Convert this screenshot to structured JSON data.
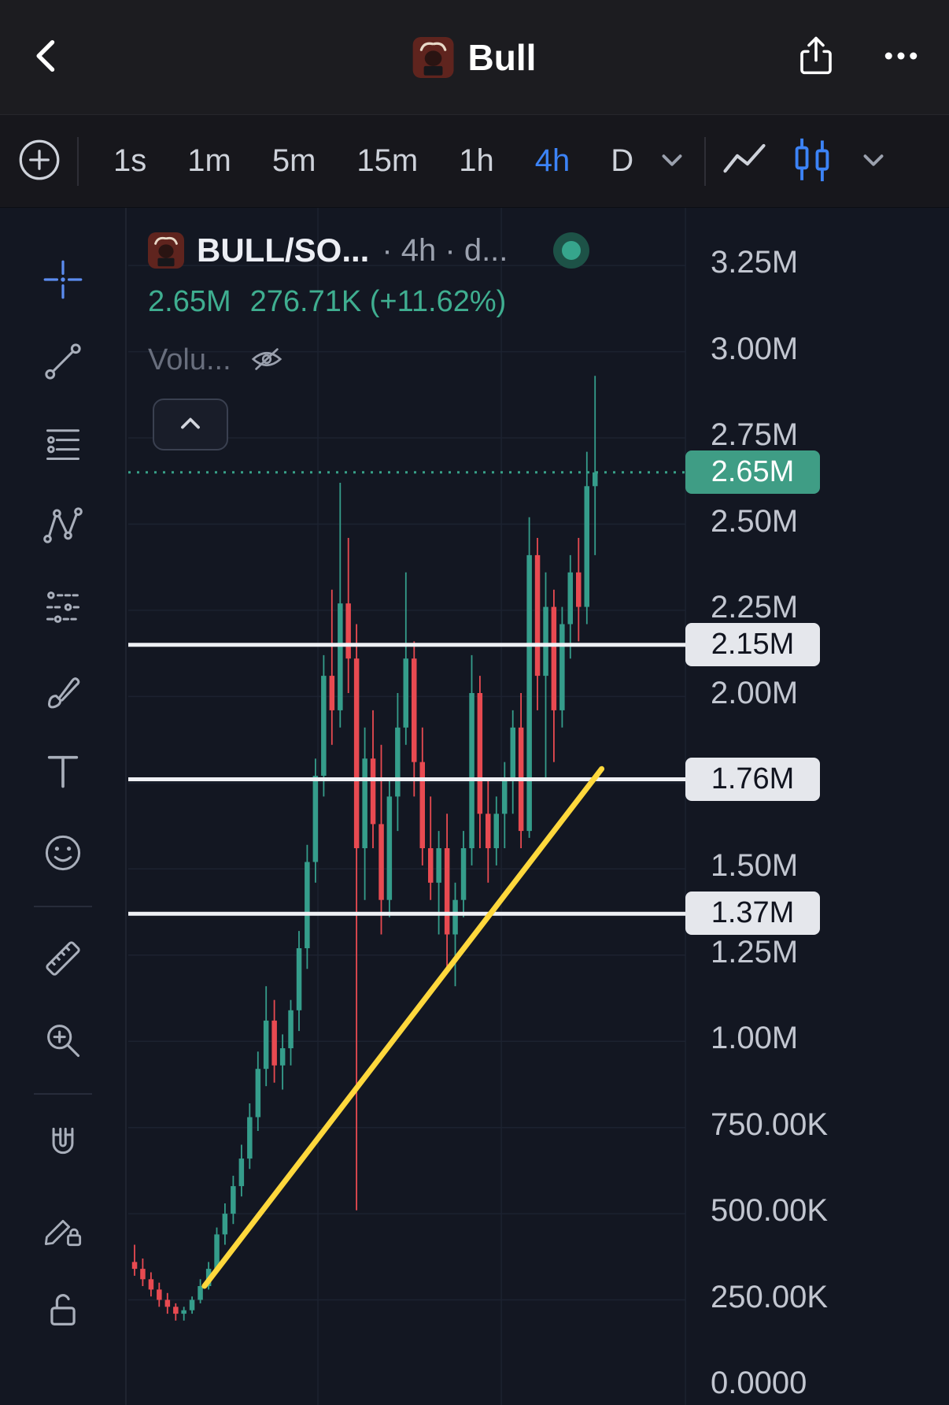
{
  "header": {
    "title": "Bull",
    "icons": [
      "back-icon",
      "bull-avatar",
      "share-icon",
      "more-icon"
    ]
  },
  "toolbar": {
    "add_icon": "add-circle-icon",
    "timeframes": [
      {
        "label": "1s",
        "active": false
      },
      {
        "label": "1m",
        "active": false
      },
      {
        "label": "5m",
        "active": false
      },
      {
        "label": "15m",
        "active": false
      },
      {
        "label": "1h",
        "active": false
      },
      {
        "label": "4h",
        "active": true
      },
      {
        "label": "D",
        "active": false
      }
    ],
    "chart_style_icons": [
      "line-chart-icon",
      "candlestick-icon",
      "chevron-down-icon"
    ]
  },
  "sidebar_tools": [
    "crosshair",
    "trend-line",
    "horizontal-lines",
    "xabcd-pattern",
    "indicator-dots",
    "brush",
    "text",
    "emoji",
    "ruler",
    "zoom-in",
    "magnet",
    "draw-lock",
    "lock-open"
  ],
  "legend": {
    "symbol": "BULL/SO...",
    "interval": "· 4h · d...",
    "price": "2.65M",
    "change": "276.71K (+11.62%)",
    "volume_label": "Volu...",
    "volume_hidden_icon": "eye-off-icon",
    "status_icon": "market-status-dot"
  },
  "price_axis": {
    "labels": [
      {
        "text": "3.25M",
        "value": 3.25
      },
      {
        "text": "3.00M",
        "value": 3.0
      },
      {
        "text": "2.75M",
        "value": 2.75
      },
      {
        "text": "2.50M",
        "value": 2.5
      },
      {
        "text": "2.25M",
        "value": 2.25
      },
      {
        "text": "2.00M",
        "value": 2.0
      },
      {
        "text": "1.50M",
        "value": 1.5
      },
      {
        "text": "1.25M",
        "value": 1.25
      },
      {
        "text": "1.00M",
        "value": 1.0
      },
      {
        "text": "750.00K",
        "value": 0.75
      },
      {
        "text": "500.00K",
        "value": 0.5
      },
      {
        "text": "250.00K",
        "value": 0.25
      },
      {
        "text": "0.0000",
        "value": 0.0
      }
    ],
    "badges": [
      {
        "text": "2.65M",
        "value": 2.65,
        "kind": "current"
      },
      {
        "text": "2.15M",
        "value": 2.15,
        "kind": "level"
      },
      {
        "text": "1.76M",
        "value": 1.76,
        "kind": "level"
      },
      {
        "text": "1.37M",
        "value": 1.37,
        "kind": "level"
      }
    ]
  },
  "colors": {
    "up": "#359d8b",
    "down": "#e84a51",
    "accent_blue": "#3c83f6",
    "trendline_yellow": "#ffd83c",
    "current_line": "#37a188",
    "level_line": "#eef0f4"
  },
  "chart_data": {
    "type": "candlestick",
    "symbol": "BULL/SO...",
    "interval": "4h",
    "last_price": 2.65,
    "change_abs": "276.71K",
    "change_pct": 11.62,
    "ylim": [
      0,
      3.4
    ],
    "levels": [
      2.15,
      1.76,
      1.37
    ],
    "current_price": 2.65,
    "trendline": {
      "x1_index": 8.5,
      "v1": 0.29,
      "x2_index": 56.8,
      "v2": 1.79
    },
    "v_grid_indices": [
      22.3,
      44.6,
      67
    ],
    "candles": [
      [
        0.36,
        0.41,
        0.32,
        0.34
      ],
      [
        0.34,
        0.37,
        0.29,
        0.31
      ],
      [
        0.31,
        0.33,
        0.26,
        0.28
      ],
      [
        0.28,
        0.3,
        0.23,
        0.25
      ],
      [
        0.25,
        0.27,
        0.21,
        0.23
      ],
      [
        0.23,
        0.24,
        0.19,
        0.21
      ],
      [
        0.21,
        0.23,
        0.19,
        0.22
      ],
      [
        0.22,
        0.26,
        0.21,
        0.25
      ],
      [
        0.25,
        0.31,
        0.24,
        0.29
      ],
      [
        0.29,
        0.36,
        0.28,
        0.34
      ],
      [
        0.34,
        0.46,
        0.33,
        0.44
      ],
      [
        0.44,
        0.53,
        0.41,
        0.5
      ],
      [
        0.5,
        0.61,
        0.47,
        0.58
      ],
      [
        0.58,
        0.7,
        0.55,
        0.66
      ],
      [
        0.66,
        0.82,
        0.63,
        0.78
      ],
      [
        0.78,
        0.97,
        0.74,
        0.92
      ],
      [
        0.92,
        1.16,
        0.87,
        1.06
      ],
      [
        1.06,
        1.12,
        0.88,
        0.93
      ],
      [
        0.93,
        1.02,
        0.86,
        0.98
      ],
      [
        0.98,
        1.12,
        0.93,
        1.09
      ],
      [
        1.09,
        1.32,
        1.03,
        1.27
      ],
      [
        1.27,
        1.57,
        1.21,
        1.52
      ],
      [
        1.52,
        1.82,
        1.46,
        1.77
      ],
      [
        1.77,
        2.12,
        1.71,
        2.06
      ],
      [
        2.06,
        2.31,
        1.86,
        1.96
      ],
      [
        1.96,
        2.62,
        1.91,
        2.27
      ],
      [
        2.27,
        2.46,
        2.01,
        2.11
      ],
      [
        2.11,
        2.21,
        0.51,
        1.56
      ],
      [
        1.56,
        1.91,
        1.41,
        1.82
      ],
      [
        1.82,
        1.96,
        1.56,
        1.63
      ],
      [
        1.63,
        1.86,
        1.31,
        1.41
      ],
      [
        1.41,
        1.76,
        1.36,
        1.71
      ],
      [
        1.71,
        2.01,
        1.61,
        1.91
      ],
      [
        1.91,
        2.36,
        1.86,
        2.11
      ],
      [
        2.11,
        2.16,
        1.71,
        1.81
      ],
      [
        1.81,
        1.91,
        1.51,
        1.56
      ],
      [
        1.56,
        1.71,
        1.41,
        1.46
      ],
      [
        1.46,
        1.61,
        1.31,
        1.56
      ],
      [
        1.56,
        1.66,
        1.21,
        1.31
      ],
      [
        1.31,
        1.46,
        1.16,
        1.41
      ],
      [
        1.41,
        1.61,
        1.36,
        1.56
      ],
      [
        1.56,
        2.12,
        1.51,
        2.01
      ],
      [
        2.01,
        2.06,
        1.56,
        1.66
      ],
      [
        1.66,
        1.76,
        1.46,
        1.56
      ],
      [
        1.56,
        1.71,
        1.51,
        1.66
      ],
      [
        1.66,
        1.81,
        1.56,
        1.76
      ],
      [
        1.76,
        1.96,
        1.66,
        1.91
      ],
      [
        1.91,
        2.01,
        1.56,
        1.61
      ],
      [
        1.61,
        2.52,
        1.59,
        2.41
      ],
      [
        2.41,
        2.46,
        1.96,
        2.06
      ],
      [
        2.06,
        2.36,
        1.76,
        2.26
      ],
      [
        2.26,
        2.31,
        1.81,
        1.96
      ],
      [
        1.96,
        2.26,
        1.91,
        2.21
      ],
      [
        2.21,
        2.41,
        2.11,
        2.36
      ],
      [
        2.36,
        2.46,
        2.16,
        2.26
      ],
      [
        2.26,
        2.71,
        2.21,
        2.61
      ],
      [
        2.61,
        2.93,
        2.41,
        2.65
      ]
    ]
  }
}
